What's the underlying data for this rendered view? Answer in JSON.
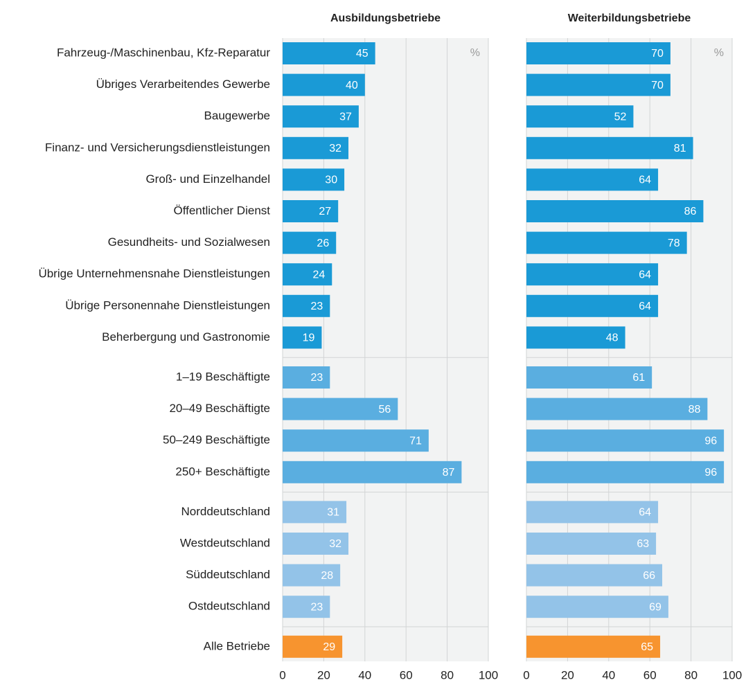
{
  "chart_data": {
    "type": "bar",
    "orientation": "horizontal",
    "unit": "%",
    "categories": [
      "Fahrzeug-/Maschinenbau, Kfz-Reparatur",
      "Übriges Verarbeitendes Gewerbe",
      "Baugewerbe",
      "Finanz- und Versicherungsdienstleistungen",
      "Groß- und Einzelhandel",
      "Öffentlicher Dienst",
      "Gesundheits- und Sozialwesen",
      "Übrige Unternehmensnahe Dienstleistungen",
      "Übrige Personennahe Dienstleistungen",
      "Beherbergung und Gastronomie",
      "1–19 Beschäftigte",
      "20–49 Beschäftigte",
      "50–249 Beschäftigte",
      "250+ Beschäftigte",
      "Norddeutschland",
      "Westdeutschland",
      "Süddeutschland",
      "Ostdeutschland",
      "Alle Betriebe"
    ],
    "colors": [
      "#1a9ad6",
      "#1a9ad6",
      "#1a9ad6",
      "#1a9ad6",
      "#1a9ad6",
      "#1a9ad6",
      "#1a9ad6",
      "#1a9ad6",
      "#1a9ad6",
      "#1a9ad6",
      "#5aaee0",
      "#5aaee0",
      "#5aaee0",
      "#5aaee0",
      "#93c3e8",
      "#93c3e8",
      "#93c3e8",
      "#93c3e8",
      "#f7942f"
    ],
    "series": [
      {
        "name": "Ausbildungsbetriebe",
        "values": [
          45,
          40,
          37,
          32,
          30,
          27,
          26,
          24,
          23,
          19,
          23,
          56,
          71,
          87,
          31,
          32,
          28,
          23,
          29
        ]
      },
      {
        "name": "Weiterbildungsbetriebe",
        "values": [
          70,
          70,
          52,
          81,
          64,
          86,
          78,
          64,
          64,
          48,
          61,
          88,
          96,
          96,
          64,
          63,
          66,
          69,
          65
        ]
      }
    ],
    "xlim": [
      0,
      100
    ],
    "xticks": [
      0,
      20,
      40,
      60,
      80,
      100
    ],
    "grid": true
  }
}
